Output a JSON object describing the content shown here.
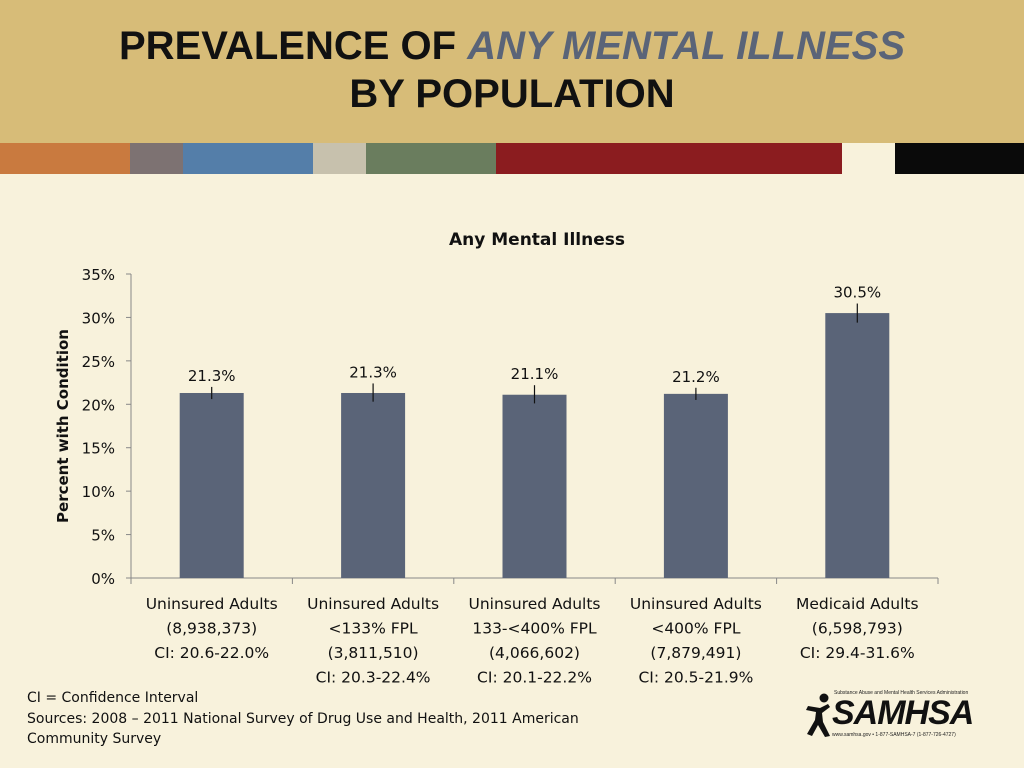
{
  "slide": {
    "title_part1": "PREVALENCE OF ",
    "title_highlight": "ANY MENTAL ILLNESS",
    "title_line2": "BY POPULATION"
  },
  "colors": {
    "header_bg": "#d7bc78",
    "slide_bg": "#f8f2dc",
    "bar": "#5a6478",
    "title_highlight": "#5a6478",
    "stripes": [
      "#c97a3f",
      "#7d7272",
      "#547ea9",
      "#c7c1ad",
      "#6a7d5e",
      "#8b1c1f",
      "#f8f2dc",
      "#0a0a0a"
    ]
  },
  "chart_data": {
    "type": "bar",
    "title": "Any Mental Illness",
    "ylabel": "Percent with Condition",
    "xlabel": "",
    "ylim": [
      0,
      35
    ],
    "yticks": [
      "0%",
      "5%",
      "10%",
      "15%",
      "20%",
      "25%",
      "30%",
      "35%"
    ],
    "ytick_values": [
      0,
      5,
      10,
      15,
      20,
      25,
      30,
      35
    ],
    "categories": [
      [
        "Uninsured Adults",
        "(8,938,373)",
        "CI: 20.6-22.0%"
      ],
      [
        "Uninsured Adults",
        "<133% FPL",
        "(3,811,510)",
        "CI: 20.3-22.4%"
      ],
      [
        "Uninsured Adults",
        "133-<400% FPL",
        "(4,066,602)",
        "CI: 20.1-22.2%"
      ],
      [
        "Uninsured Adults",
        "<400% FPL",
        "(7,879,491)",
        "CI: 20.5-21.9%"
      ],
      [
        "Medicaid Adults",
        "(6,598,793)",
        "CI: 29.4-31.6%"
      ]
    ],
    "values": [
      21.3,
      21.3,
      21.1,
      21.2,
      30.5
    ],
    "value_labels": [
      "21.3%",
      "21.3%",
      "21.1%",
      "21.2%",
      "30.5%"
    ],
    "ci": [
      [
        20.6,
        22.0
      ],
      [
        20.3,
        22.4
      ],
      [
        20.1,
        22.2
      ],
      [
        20.5,
        21.9
      ],
      [
        29.4,
        31.6
      ]
    ],
    "grid": false,
    "legend": "none"
  },
  "notes": {
    "line1": "CI = Confidence Interval",
    "line2": "Sources: 2008 – 2011 National Survey of Drug Use and Health, 2011 American",
    "line3": "Community Survey"
  },
  "logo": {
    "top_text": "Substance Abuse and Mental Health Services Administration",
    "wordmark": "SAMHSA",
    "bottom_text": "www.samhsa.gov • 1-877-SAMHSA-7 (1-877-726-4727)"
  }
}
